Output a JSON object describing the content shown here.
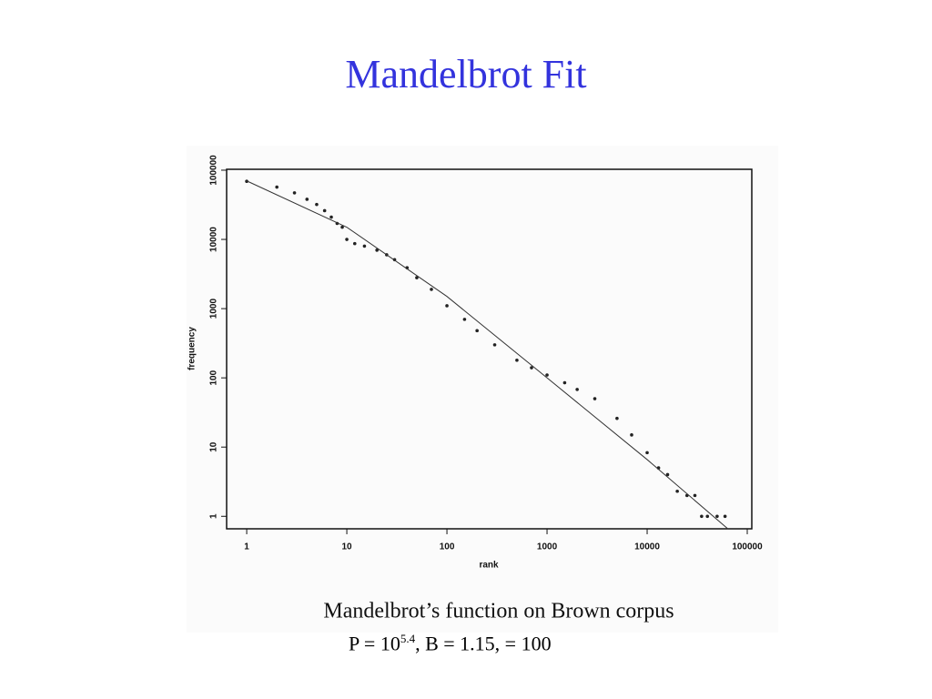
{
  "title": "Mandelbrot Fit",
  "chart_data": {
    "type": "scatter",
    "xlabel": "rank",
    "ylabel": "frequency",
    "xscale": "log",
    "yscale": "log",
    "xlim": [
      0.63,
      111000
    ],
    "ylim": [
      0.66,
      103000
    ],
    "xticks": [
      1,
      10,
      100,
      1000,
      10000,
      100000
    ],
    "yticks": [
      1,
      10,
      100,
      1000,
      10000,
      100000
    ],
    "series": [
      {
        "color": "#222222",
        "type": "scatter",
        "x": [
          1,
          2,
          3,
          4,
          5,
          6,
          7,
          8,
          9,
          10,
          12,
          15,
          20,
          25,
          30,
          40,
          50,
          70,
          100,
          150,
          200,
          300,
          500,
          700,
          1000,
          1500,
          2000,
          3000,
          5000,
          7000,
          10000,
          13000,
          16000,
          20000,
          25000,
          30000,
          35000,
          40000,
          50000,
          60000
        ],
        "values": [
          69000,
          57000,
          47000,
          38000,
          32000,
          26000,
          21000,
          17000,
          15000,
          10000,
          8700,
          8000,
          7000,
          6000,
          5100,
          3900,
          2800,
          1900,
          1100,
          700,
          480,
          300,
          180,
          140,
          110,
          85,
          68,
          50,
          26,
          15,
          8.3,
          5,
          4,
          2.3,
          2,
          2,
          1,
          1,
          1,
          1
        ]
      },
      {
        "color": "#333333",
        "type": "line",
        "x": [
          1,
          10,
          100,
          1000,
          10000,
          64000
        ],
        "values": [
          70000,
          15000,
          1500,
          100,
          6.6,
          0.66
        ]
      }
    ]
  },
  "caption": "Mandelbrot’s function on Brown corpus",
  "formula": [
    "P = 10",
    "5.4",
    ", B = 1.15,   = 100"
  ]
}
